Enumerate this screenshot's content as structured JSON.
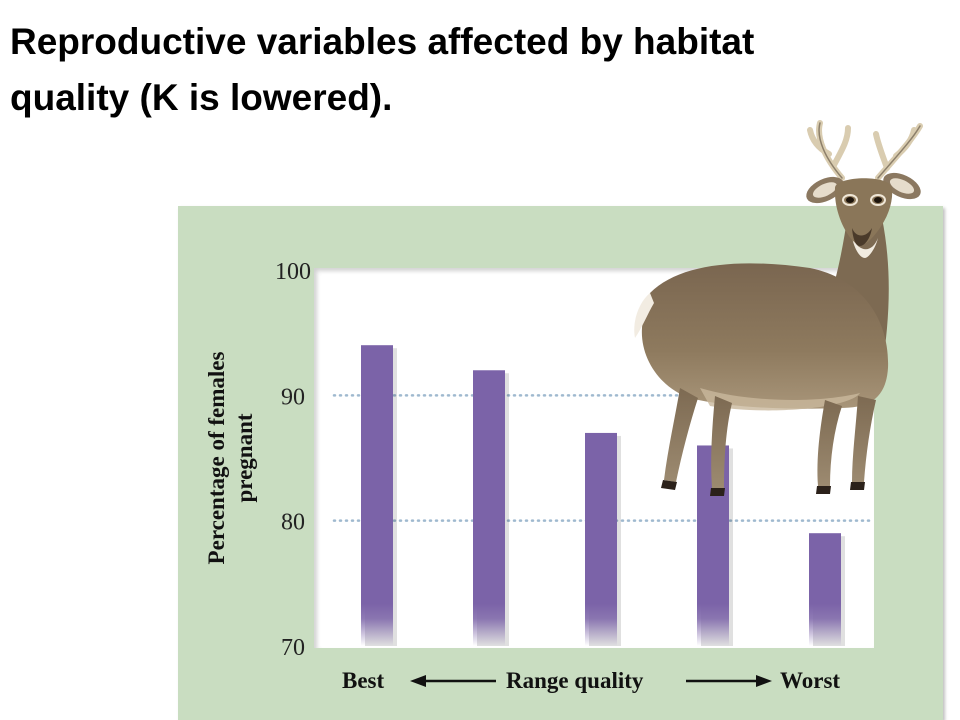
{
  "slide": {
    "title_line1": "Reproductive variables affected by habitat",
    "title_line2": "quality (K is lowered)."
  },
  "colors": {
    "panel_bg": "#c9ddc1",
    "bar": "#7b63a8",
    "grid": "#9fb9cf"
  },
  "chart_data": {
    "type": "bar",
    "categories": [
      "",
      "",
      "",
      "",
      ""
    ],
    "values": [
      94,
      92,
      87,
      86,
      79
    ],
    "ylabel": "Percentage of females pregnant",
    "ylabel_lines": [
      "Percentage of females",
      "pregnant"
    ],
    "ylim": [
      70,
      100
    ],
    "yticks": [
      100,
      90,
      80,
      70
    ],
    "grid": "dotted at 80 and 90",
    "xaxis": {
      "left_label": "Best",
      "center_label": "Range quality",
      "right_label": "Worst"
    }
  },
  "illustration": {
    "icon": "white-tailed-deer-icon"
  }
}
